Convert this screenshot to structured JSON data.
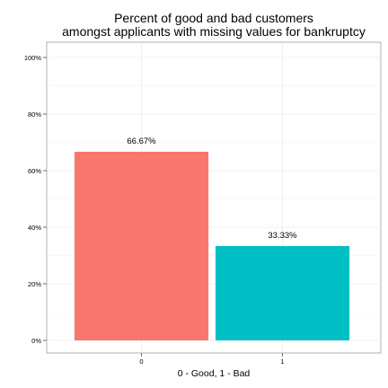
{
  "chart_data": {
    "type": "bar",
    "title": [
      "Percent of good and bad customers",
      "amongst applicants with missing values for bankruptcy"
    ],
    "xlabel": "0 - Good, 1 - Bad",
    "ylabel": "",
    "categories": [
      "0",
      "1"
    ],
    "values": [
      66.67,
      33.33
    ],
    "value_labels": [
      "66.67%",
      "33.33%"
    ],
    "ylim": [
      0,
      100
    ],
    "yticks": [
      0,
      20,
      40,
      60,
      80,
      100
    ],
    "ytick_labels": [
      "0%",
      "20%",
      "40%",
      "60%",
      "80%",
      "100%"
    ],
    "colors": [
      "#F8766D",
      "#00BFC4"
    ],
    "grid": true,
    "legend": "none"
  }
}
